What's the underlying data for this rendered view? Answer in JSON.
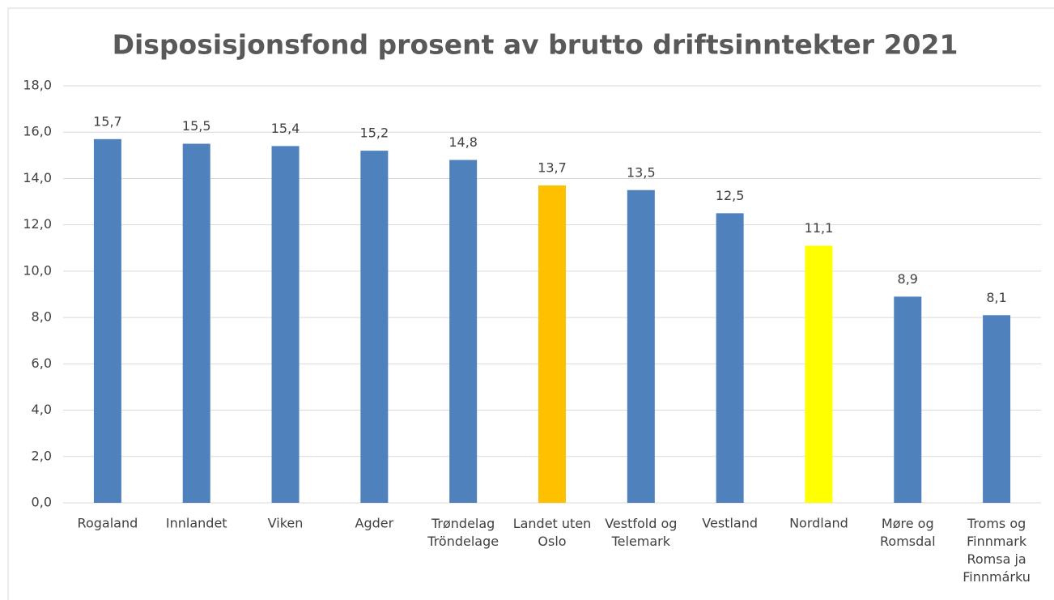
{
  "chart_data": {
    "type": "bar",
    "title": "Disposisjonsfond prosent av brutto driftsinntekter 2021",
    "categories": [
      "Rogaland",
      "Innlandet",
      "Viken",
      "Agder",
      "Trøndelag\nTröndelage",
      "Landet uten\nOslo",
      "Vestfold og\nTelemark",
      "Vestland",
      "Nordland",
      "Møre og\nRomsdal",
      "Troms og\nFinnmark\nRomsa ja\nFinnmárku"
    ],
    "values": [
      15.7,
      15.5,
      15.4,
      15.2,
      14.8,
      13.7,
      13.5,
      12.5,
      11.1,
      8.9,
      8.1
    ],
    "value_labels": [
      "15,7",
      "15,5",
      "15,4",
      "15,2",
      "14,8",
      "13,7",
      "13,5",
      "12,5",
      "11,1",
      "8,9",
      "8,1"
    ],
    "colors": [
      "#4f81bd",
      "#4f81bd",
      "#4f81bd",
      "#4f81bd",
      "#4f81bd",
      "#ffc000",
      "#4f81bd",
      "#4f81bd",
      "#ffff00",
      "#4f81bd",
      "#4f81bd"
    ],
    "ylim": [
      0,
      18
    ],
    "yticks": [
      {
        "value": 0,
        "label": "0,0"
      },
      {
        "value": 2,
        "label": "2,0"
      },
      {
        "value": 4,
        "label": "4,0"
      },
      {
        "value": 6,
        "label": "6,0"
      },
      {
        "value": 8,
        "label": "8,0"
      },
      {
        "value": 10,
        "label": "10,0"
      },
      {
        "value": 12,
        "label": "12,0"
      },
      {
        "value": 14,
        "label": "14,0"
      },
      {
        "value": 16,
        "label": "16,0"
      },
      {
        "value": 18,
        "label": "18,0"
      }
    ],
    "grid": true
  }
}
